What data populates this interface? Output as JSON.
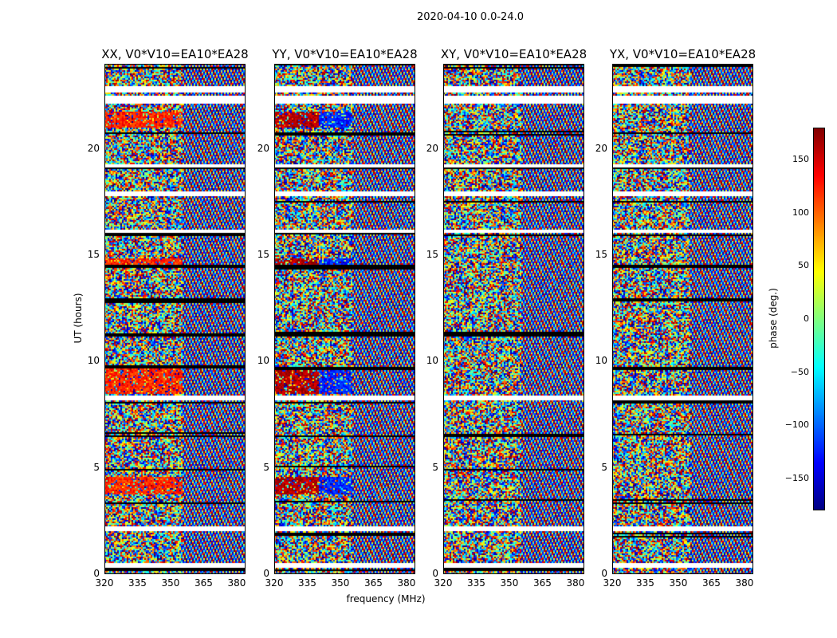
{
  "suptitle": "2020-04-10 0.0-24.0",
  "chart_data": {
    "type": "heatmap",
    "panels": [
      {
        "title": "XX, V0*V10=EA10*EA28",
        "pol": "XX"
      },
      {
        "title": "YY, V0*V10=EA10*EA28",
        "pol": "YY"
      },
      {
        "title": "XY, V0*V10=EA10*EA28",
        "pol": "XY"
      },
      {
        "title": "YX, V0*V10=EA10*EA28",
        "pol": "YX"
      }
    ],
    "xlabel": "frequency (MHz)",
    "ylabel": "UT (hours)",
    "xlim": [
      320,
      384
    ],
    "ylim": [
      0,
      24
    ],
    "xticks": [
      "320",
      "335",
      "350",
      "365",
      "380"
    ],
    "yticks": [
      "0",
      "5",
      "10",
      "15",
      "20"
    ],
    "colorbar": {
      "label": "phase (deg.)",
      "range": [
        -180,
        180
      ],
      "ticks": [
        "150",
        "100",
        "50",
        "0",
        "−50",
        "−100",
        "−150"
      ],
      "colormap": "jet"
    }
  }
}
